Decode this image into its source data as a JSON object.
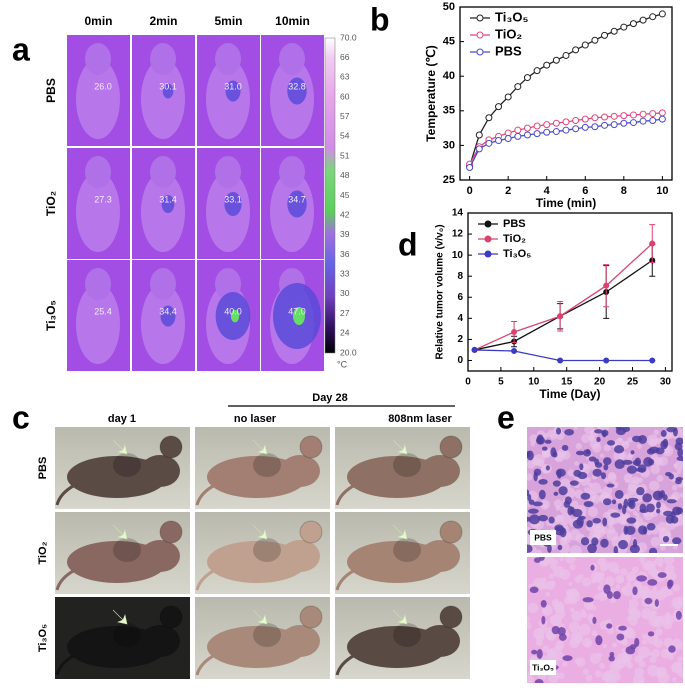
{
  "panel_labels": [
    "a",
    "b",
    "c",
    "d",
    "e"
  ],
  "thermal": {
    "columns": [
      "0min",
      "2min",
      "5min",
      "10min"
    ],
    "rows": [
      "PBS",
      "TiO₂",
      "Ti₃O₅"
    ],
    "temperatures": [
      [
        "26.0",
        "30.1",
        "31.0",
        "32.8"
      ],
      [
        "27.3",
        "31.4",
        "33.1",
        "34.7"
      ],
      [
        "25.4",
        "34.4",
        "40.0",
        "47.0"
      ]
    ],
    "colorbar_ticks": [
      "70.0",
      "66",
      "63",
      "60",
      "57",
      "54",
      "51",
      "48",
      "45",
      "42",
      "39",
      "36",
      "33",
      "30",
      "27",
      "24",
      "20.0"
    ],
    "colorbar_unit": "°C"
  },
  "chart_data": [
    {
      "type": "line",
      "xlabel": "Time (min)",
      "ylabel": "Temperature (℃)",
      "x": [
        0,
        0.5,
        1,
        1.5,
        2,
        2.5,
        3,
        3.5,
        4,
        4.5,
        5,
        5.5,
        6,
        6.5,
        7,
        7.5,
        8,
        8.5,
        9,
        9.5,
        10
      ],
      "series": [
        {
          "name": "Ti₃O₅",
          "color": "#222222",
          "values": [
            27.0,
            31.5,
            34.0,
            35.6,
            37.0,
            38.5,
            39.8,
            40.8,
            41.6,
            42.3,
            43.0,
            43.8,
            44.5,
            45.2,
            45.9,
            46.5,
            47.1,
            47.6,
            48.1,
            48.6,
            49.0
          ]
        },
        {
          "name": "TiO₂",
          "color": "#e0457b",
          "values": [
            27.3,
            29.8,
            30.8,
            31.3,
            31.8,
            32.2,
            32.5,
            32.8,
            33.0,
            33.2,
            33.4,
            33.6,
            33.8,
            34.0,
            34.1,
            34.2,
            34.3,
            34.4,
            34.5,
            34.6,
            34.7
          ]
        },
        {
          "name": "PBS",
          "color": "#4a4ac8",
          "values": [
            26.8,
            29.5,
            30.3,
            30.7,
            31.0,
            31.3,
            31.5,
            31.7,
            31.9,
            32.0,
            32.2,
            32.4,
            32.6,
            32.7,
            32.9,
            33.0,
            33.2,
            33.3,
            33.5,
            33.6,
            33.8
          ]
        }
      ],
      "xlim": [
        -0.5,
        10.5
      ],
      "ylim": [
        25,
        50
      ],
      "xticks": [
        0,
        2,
        4,
        6,
        8,
        10
      ],
      "yticks": [
        25,
        30,
        35,
        40,
        45,
        50
      ],
      "legend": "upper left"
    },
    {
      "type": "line",
      "xlabel": "Time (Day)",
      "ylabel": "Relative tumor volume (v/v₀)",
      "x": [
        1,
        7,
        14,
        21,
        28
      ],
      "series": [
        {
          "name": "PBS",
          "color": "#111111",
          "values": [
            1,
            1.8,
            4.2,
            6.5,
            9.5
          ],
          "errors": [
            0,
            0.5,
            1.2,
            2.5,
            1.5
          ]
        },
        {
          "name": "TiO₂",
          "color": "#d9436f",
          "values": [
            1,
            2.7,
            4.2,
            7.1,
            11.1
          ],
          "errors": [
            0,
            1,
            1.4,
            2,
            1.8
          ]
        },
        {
          "name": "Ti₃O₅",
          "color": "#3b3bc4",
          "values": [
            1,
            0.9,
            0,
            0,
            0
          ],
          "errors": [
            0,
            0,
            0,
            0,
            0
          ]
        }
      ],
      "xlim": [
        0,
        31
      ],
      "ylim": [
        -1,
        14
      ],
      "xticks": [
        0,
        5,
        10,
        15,
        20,
        25,
        30
      ],
      "yticks": [
        0,
        2,
        4,
        6,
        8,
        10,
        12,
        14
      ],
      "legend": "upper left"
    }
  ],
  "photos": {
    "group": "Day 28",
    "columns": [
      "day 1",
      "no  laser",
      "808nm laser"
    ],
    "rows": [
      "PBS",
      "TiO₂",
      "Ti₃O₅"
    ]
  },
  "histology": {
    "labels": [
      "PBS",
      "Ti₃O₅"
    ]
  }
}
